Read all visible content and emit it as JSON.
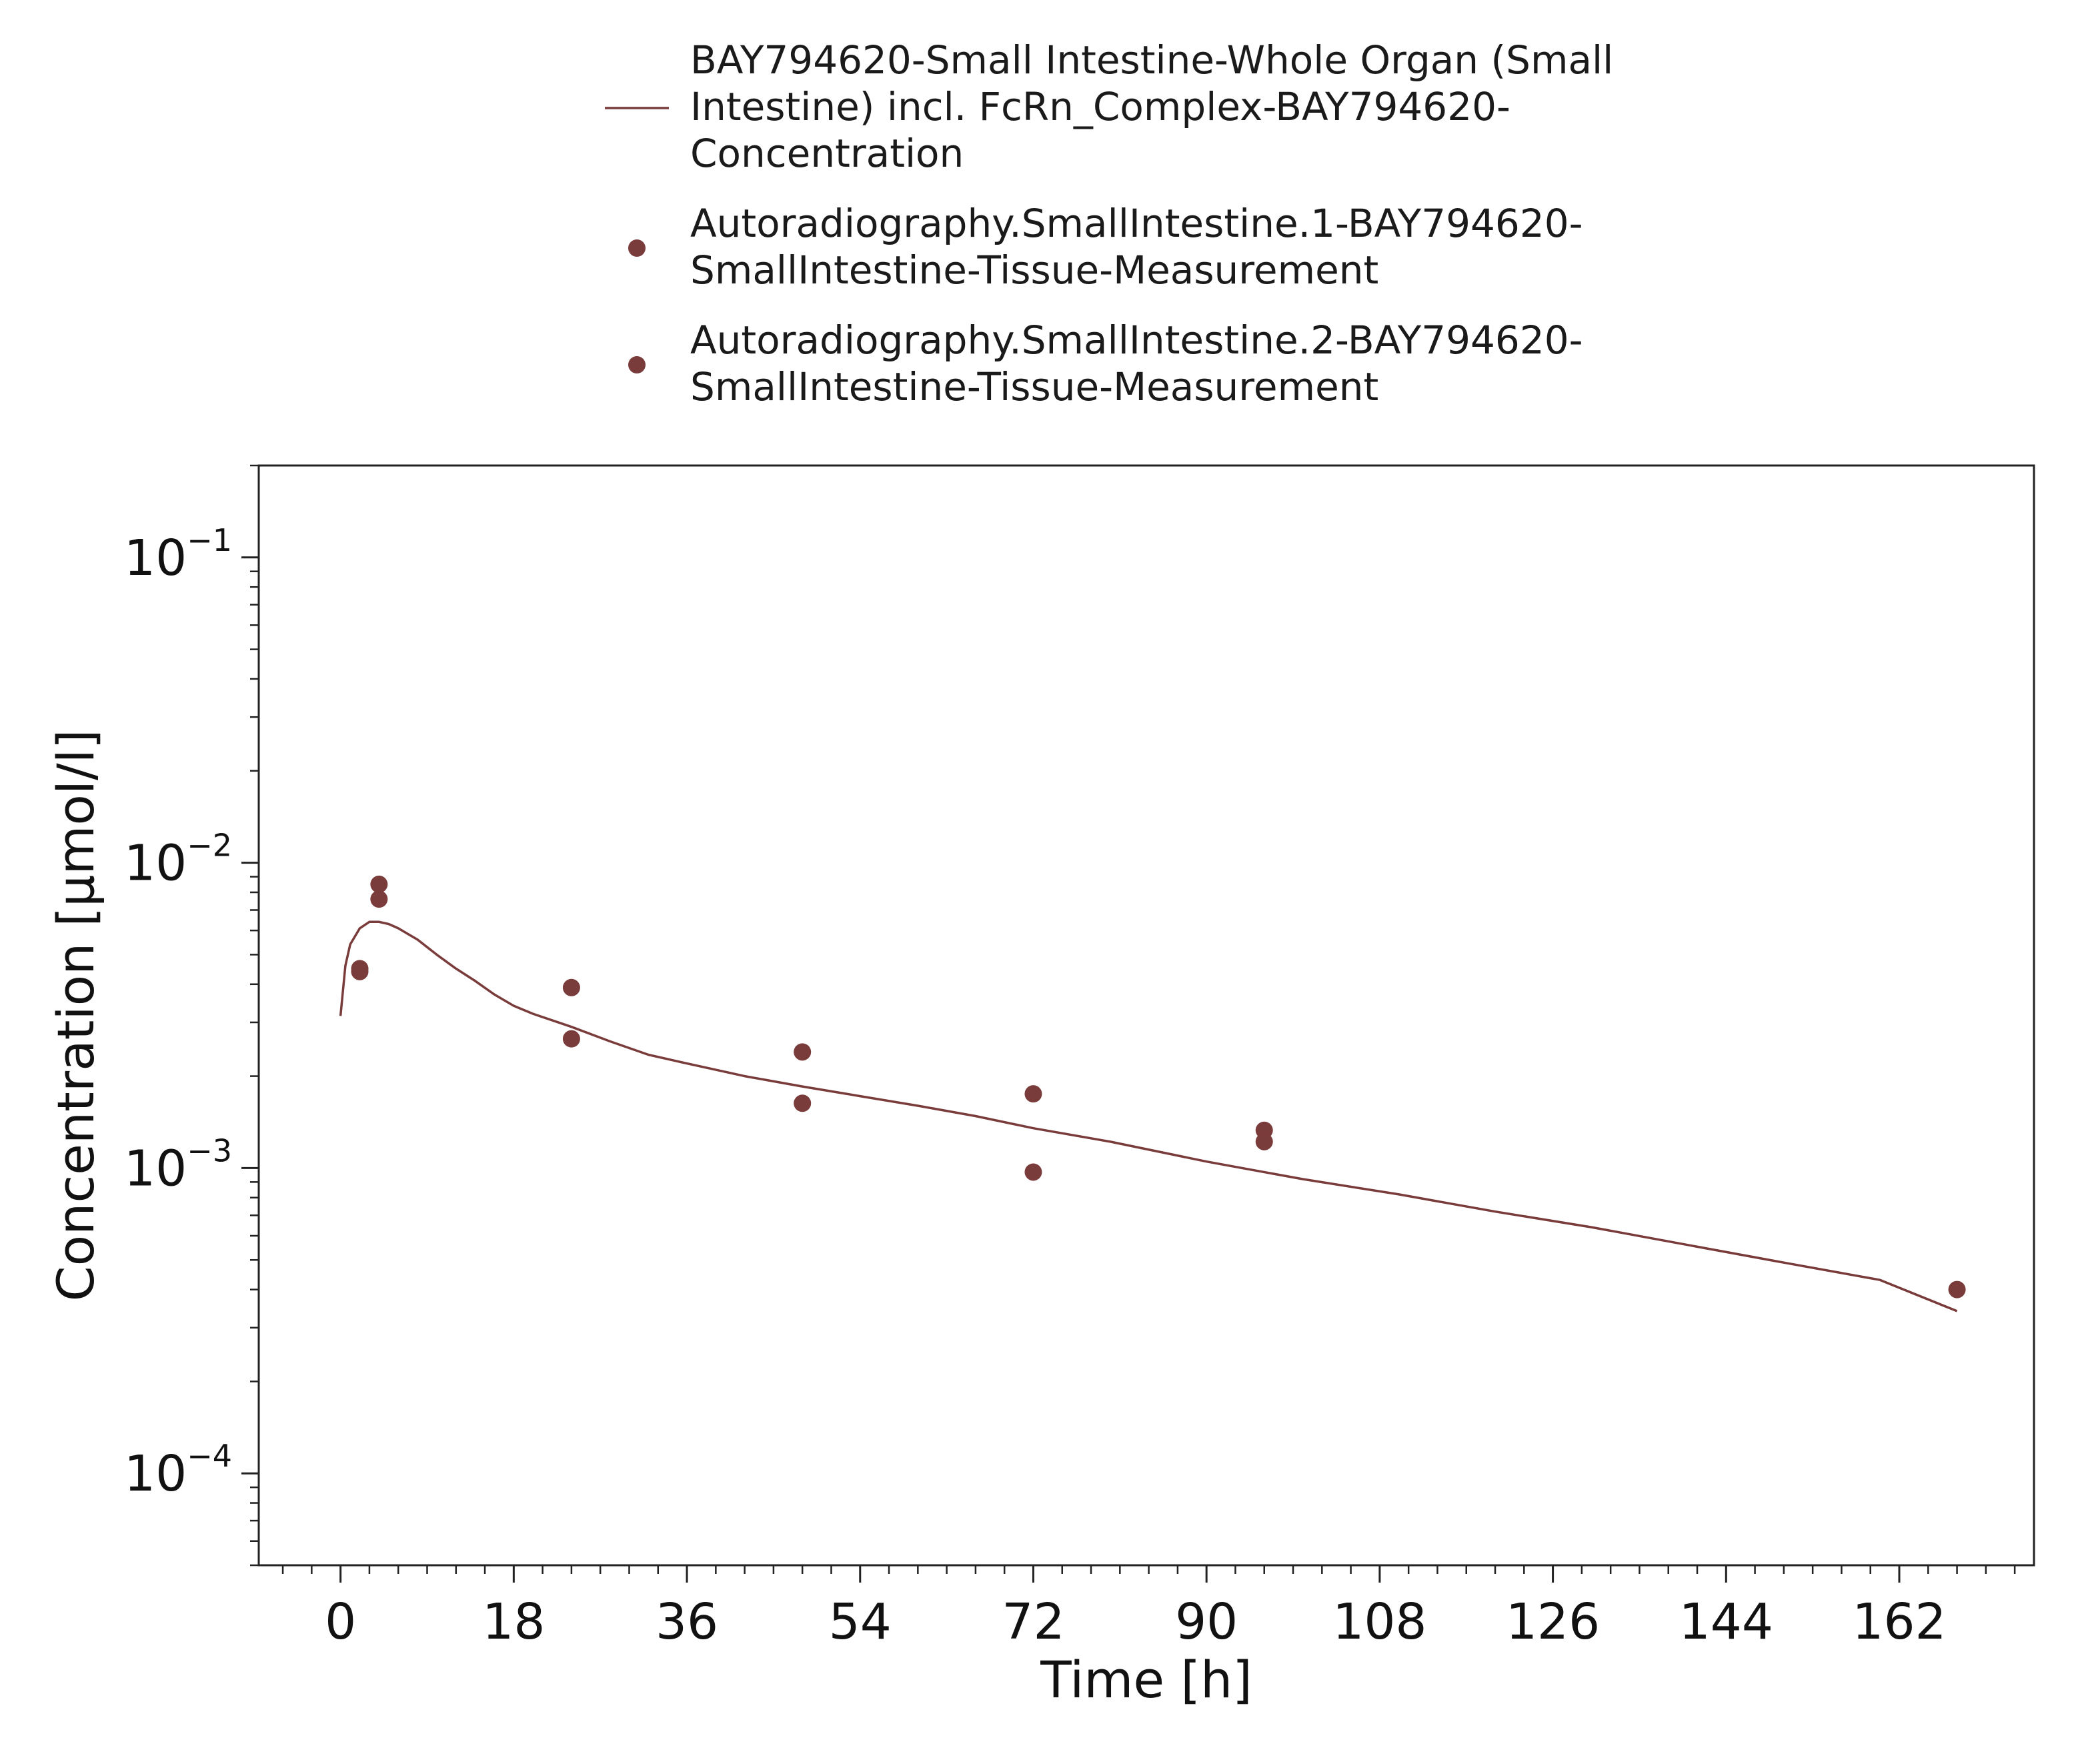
{
  "chart_data": {
    "type": "scatter",
    "xlabel": "Time [h]",
    "ylabel": "Concentration [µmol/l]",
    "x_ticks": [
      0,
      18,
      36,
      54,
      72,
      90,
      108,
      126,
      144,
      162
    ],
    "y_ticks": [
      {
        "value": 0.0001,
        "base": "10",
        "exp": "−4"
      },
      {
        "value": 0.001,
        "base": "10",
        "exp": "−3"
      },
      {
        "value": 0.01,
        "base": "10",
        "exp": "−2"
      },
      {
        "value": 0.1,
        "base": "10",
        "exp": "−1"
      }
    ],
    "xlim": [
      -8.5,
      176
    ],
    "ylim": [
      5e-05,
      0.2
    ],
    "y_scale": "log",
    "grid": false,
    "legend_position": "top",
    "color": "#7a3b3b",
    "series": [
      {
        "name": "BAY794620-Small Intestine-Whole Organ (Small Intestine) incl. FcRn_Complex-BAY794620-Concentration",
        "legend_lines": [
          "BAY794620-Small Intestine-Whole Organ (Small",
          "Intestine) incl. FcRn_Complex-BAY794620-",
          "Concentration"
        ],
        "kind": "line",
        "x": [
          0,
          0.5,
          1,
          2,
          3,
          4,
          5,
          6,
          8,
          10,
          12,
          14,
          16,
          18,
          20,
          24,
          28,
          32,
          36,
          42,
          48,
          54,
          60,
          66,
          72,
          80,
          90,
          100,
          110,
          120,
          130,
          140,
          150,
          160,
          168
        ],
        "y": [
          0.00315,
          0.0046,
          0.0054,
          0.0061,
          0.0064,
          0.0064,
          0.0063,
          0.0061,
          0.0056,
          0.005,
          0.0045,
          0.0041,
          0.0037,
          0.0034,
          0.0032,
          0.0029,
          0.0026,
          0.00235,
          0.0022,
          0.002,
          0.00185,
          0.00172,
          0.0016,
          0.00148,
          0.00135,
          0.00122,
          0.00105,
          0.00092,
          0.00082,
          0.00072,
          0.00064,
          0.00056,
          0.00049,
          0.00043,
          0.00034
        ]
      },
      {
        "name": "Autoradiography.SmallIntestine.1-BAY794620-SmallIntestine-Tissue-Measurement",
        "legend_lines": [
          "Autoradiography.SmallIntestine.1-BAY794620-",
          "SmallIntestine-Tissue-Measurement"
        ],
        "kind": "scatter",
        "x": [
          2,
          4,
          24,
          48,
          72,
          96,
          168
        ],
        "y": [
          0.0045,
          0.0085,
          0.0039,
          0.0024,
          0.00175,
          0.00133,
          0.0004
        ]
      },
      {
        "name": "Autoradiography.SmallIntestine.2-BAY794620-SmallIntestine-Tissue-Measurement",
        "legend_lines": [
          "Autoradiography.SmallIntestine.2-BAY794620-",
          "SmallIntestine-Tissue-Measurement"
        ],
        "kind": "scatter",
        "x": [
          2,
          4,
          24,
          48,
          72,
          96
        ],
        "y": [
          0.0044,
          0.0076,
          0.00265,
          0.00163,
          0.00097,
          0.00122
        ]
      }
    ]
  }
}
